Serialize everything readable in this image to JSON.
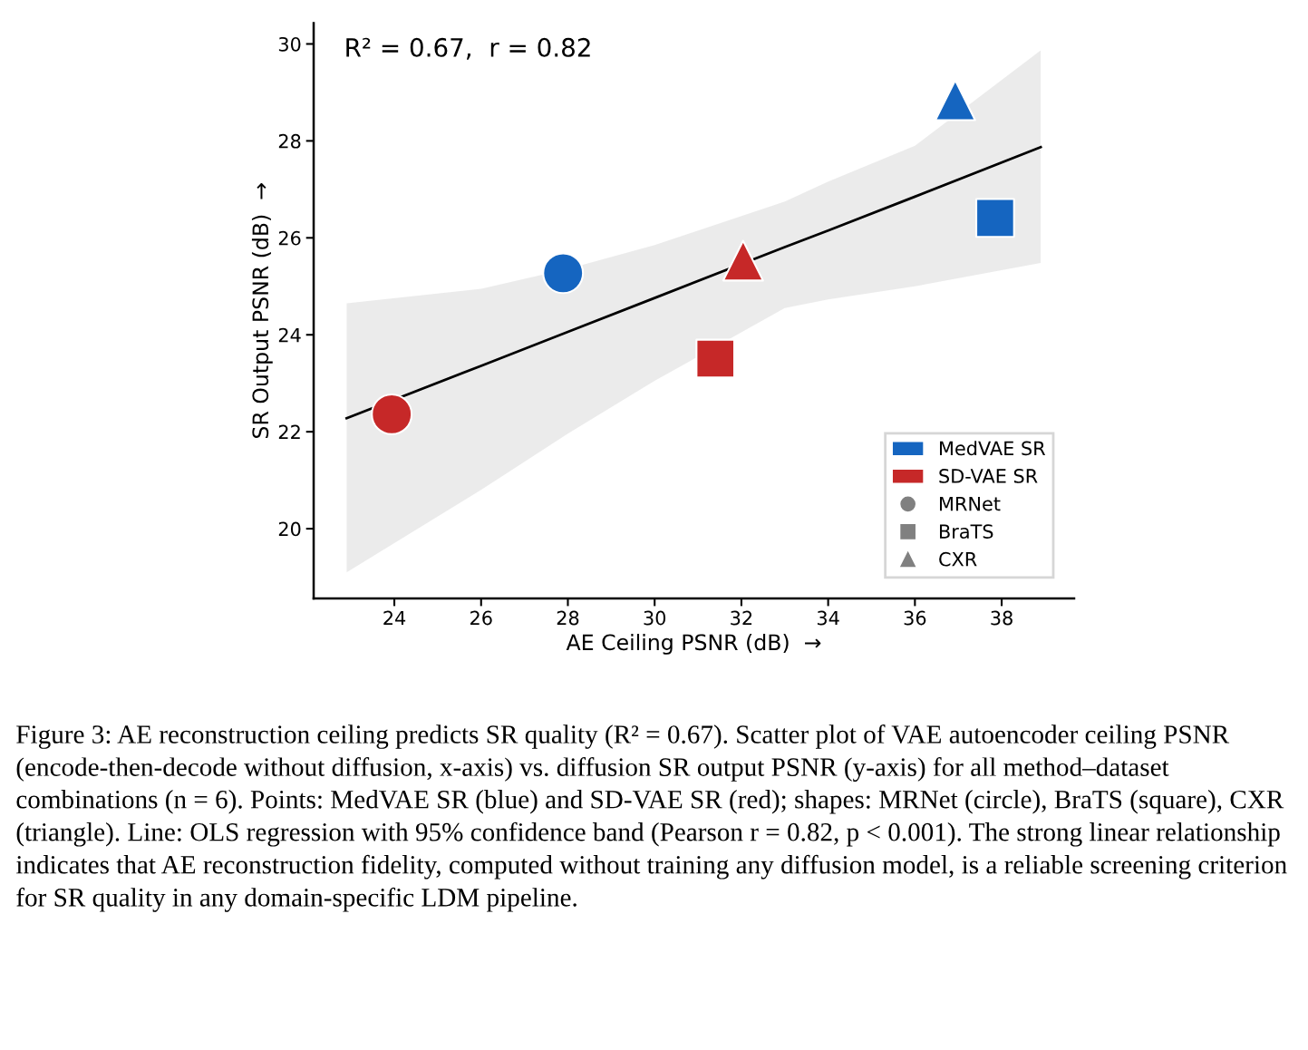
{
  "chart_data": {
    "type": "scatter",
    "xlabel": "AE Ceiling PSNR (dB)  →",
    "ylabel": "SR Output PSNR (dB)  →",
    "xlim": [
      22.14,
      39.67
    ],
    "xticks": [
      24,
      26,
      28,
      30,
      32,
      34,
      36,
      38
    ],
    "ylim": [
      18.56,
      30.43
    ],
    "yticks": [
      20,
      22,
      24,
      26,
      28,
      30
    ],
    "grid": false,
    "legend": "bottom right",
    "series": [
      {
        "type": "line",
        "color": "#000000",
        "x": [
          22.9,
          26,
          28,
          30,
          33,
          34,
          36,
          38.9
        ],
        "values": [
          22.28,
          23.36,
          24.06,
          24.76,
          25.81,
          26.15,
          26.85,
          27.87
        ],
        "lower": [
          19.1,
          20.8,
          21.96,
          23.05,
          24.55,
          24.73,
          25.0,
          25.48
        ],
        "upper": [
          24.65,
          24.95,
          25.36,
          25.85,
          26.75,
          27.16,
          27.9,
          29.87
        ]
      },
      {
        "name": "MedVAE SR",
        "color": "#1565c0",
        "x": [
          27.89,
          37.85,
          36.93
        ],
        "values": [
          25.27,
          26.41,
          28.84
        ],
        "marker": [
          "circle",
          "square",
          "triangle"
        ]
      },
      {
        "name": "SD-VAE SR",
        "color": "#c62828",
        "x": [
          23.94,
          31.4,
          32.04
        ],
        "values": [
          22.36,
          23.51,
          25.53
        ],
        "marker": [
          "circle",
          "square",
          "triangle"
        ]
      },
      {
        "name": "MRNet",
        "color": "#808080",
        "marker": "circle"
      },
      {
        "name": "BraTS",
        "color": "#808080",
        "marker": "square"
      },
      {
        "name": "CXR",
        "color": "#808080",
        "marker": "triangle"
      }
    ],
    "annotations": [
      "R² = 0.67,  r = 0.82",
      "Figure 3: AE reconstruction ceiling predicts SR quality (R² = 0.67). Scatter plot of VAE autoencoder ceiling PSNR (encode-then-decode without diffusion, x-axis) vs. diffusion SR output PSNR (y-axis) for all method–dataset combinations (n = 6). Points: MedVAE SR (blue) and SD-VAE SR (red); shapes: MRNet (circle), BraTS (square), CXR (triangle). Line: OLS regression with 95% confidence band (Pearson r = 0.82, p < 0.001). The strong linear relationship indicates that AE reconstruction fidelity, computed without training any diffusion model, is a reliable screening criterion for SR quality in any domain-specific LDM pipeline."
    ]
  }
}
